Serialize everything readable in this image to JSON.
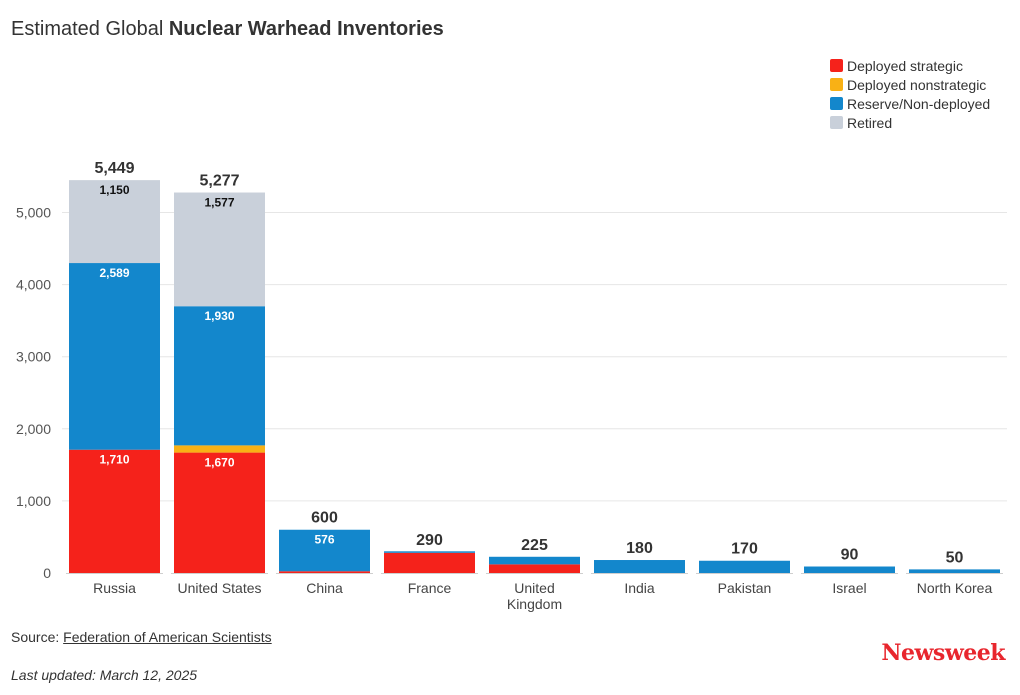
{
  "header": {
    "title_prefix": "Estimated Global",
    "title_bold": "Nuclear Warhead Inventories"
  },
  "legend": [
    {
      "label": "Deployed strategic",
      "color": "#f5221b"
    },
    {
      "label": "Deployed nonstrategic",
      "color": "#f9b115"
    },
    {
      "label": "Reserve/Non-deployed",
      "color": "#1387cc"
    },
    {
      "label": "Retired",
      "color": "#c9d0da"
    }
  ],
  "footer": {
    "source_prefix": "Source: ",
    "source_link": "Federation of American Scientists",
    "updated": "Last updated: March 12, 2025",
    "brand": "Newsweek"
  },
  "chart_data": {
    "type": "bar",
    "stacked": true,
    "title": "Estimated Global Nuclear Warhead Inventories",
    "xlabel": "",
    "ylabel": "",
    "ylim": [
      0,
      5500
    ],
    "yticks": [
      0,
      1000,
      2000,
      3000,
      4000,
      5000
    ],
    "ytick_labels": [
      "0",
      "1,000",
      "2,000",
      "3,000",
      "4,000",
      "5,000"
    ],
    "grid": true,
    "legend_position": "top-right",
    "categories": [
      [
        "Russia"
      ],
      [
        "United States"
      ],
      [
        "China"
      ],
      [
        "France"
      ],
      [
        "United",
        "Kingdom"
      ],
      [
        "India"
      ],
      [
        "Pakistan"
      ],
      [
        "Israel"
      ],
      [
        "North Korea"
      ]
    ],
    "series": [
      {
        "name": "Deployed strategic",
        "color": "#f5221b",
        "values": [
          1710,
          1670,
          24,
          280,
          120,
          0,
          0,
          0,
          0
        ],
        "labels": [
          "1,710",
          "1,670",
          "",
          "",
          "",
          "",
          "",
          "",
          ""
        ]
      },
      {
        "name": "Deployed nonstrategic",
        "color": "#f9b115",
        "values": [
          0,
          100,
          0,
          0,
          0,
          0,
          0,
          0,
          0
        ],
        "labels": [
          "",
          "",
          "",
          "",
          "",
          "",
          "",
          "",
          ""
        ]
      },
      {
        "name": "Reserve/Non-deployed",
        "color": "#1387cc",
        "values": [
          2589,
          1930,
          576,
          10,
          105,
          180,
          170,
          90,
          50
        ],
        "labels": [
          "2,589",
          "1,930",
          "576",
          "",
          "",
          "",
          "",
          "",
          ""
        ]
      },
      {
        "name": "Retired",
        "color": "#c9d0da",
        "values": [
          1150,
          1577,
          0,
          0,
          0,
          0,
          0,
          0,
          0
        ],
        "labels": [
          "1,150",
          "1,577",
          "",
          "",
          "",
          "",
          "",
          "",
          ""
        ]
      }
    ],
    "totals": [
      5449,
      5277,
      600,
      290,
      225,
      180,
      170,
      90,
      50
    ],
    "total_labels": [
      "5,449",
      "5,277",
      "600",
      "290",
      "225",
      "180",
      "170",
      "90",
      "50"
    ]
  }
}
